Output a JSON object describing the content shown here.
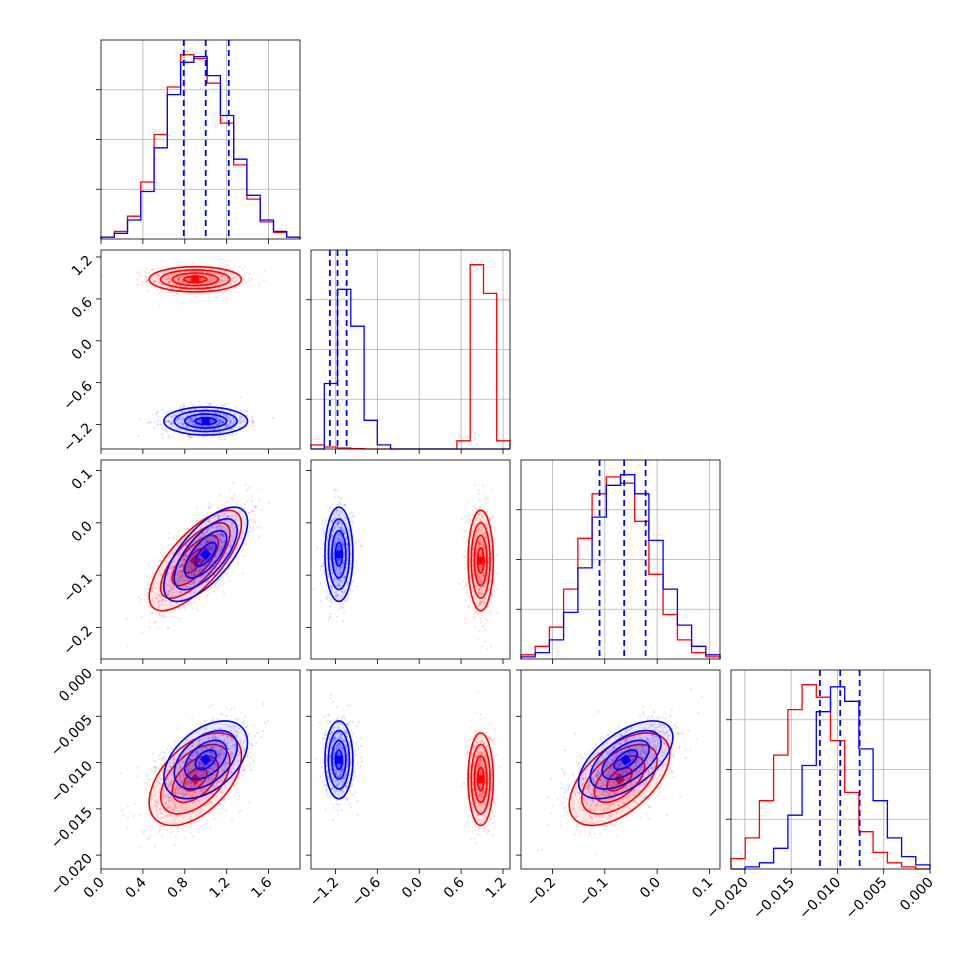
{
  "colors": {
    "red": "#ff0000",
    "blue": "#0000ff",
    "grid": "#b0b0b0"
  },
  "chart_data": {
    "type": "scatter",
    "title": "",
    "grid": true,
    "params": [
      {
        "range": [
          0.0,
          1.9
        ],
        "ticks": [
          "0.0",
          "0.4",
          "0.8",
          "1.2",
          "1.6"
        ],
        "tick_values": [
          0.0,
          0.4,
          0.8,
          1.2,
          1.6
        ]
      },
      {
        "range": [
          -1.55,
          1.3
        ],
        "ticks": [
          "−1.2",
          "−0.6",
          "0.0",
          "0.6",
          "1.2"
        ],
        "tick_values": [
          -1.2,
          -0.6,
          0.0,
          0.6,
          1.2
        ]
      },
      {
        "range": [
          -0.26,
          0.12
        ],
        "ticks": [
          "−0.2",
          "−0.1",
          "0.0",
          "0.1"
        ],
        "tick_values": [
          -0.2,
          -0.1,
          0.0,
          0.1
        ]
      },
      {
        "range": [
          -0.0215,
          0.0
        ],
        "ticks": [
          "−0.020",
          "−0.015",
          "−0.010",
          "−0.005",
          "0.000"
        ],
        "tick_values": [
          -0.02,
          -0.015,
          -0.01,
          -0.005,
          0.0
        ]
      }
    ],
    "series": [
      {
        "color": "#ff0000",
        "mean": [
          0.9,
          0.88,
          -0.072,
          -0.0118
        ],
        "std": [
          0.22,
          0.09,
          0.048,
          0.0025
        ],
        "corr": {
          "0-2": 0.72,
          "0-3": 0.5,
          "2-3": 0.55
        },
        "hist": [
          [
            0.1,
            0.4,
            1.2,
            3.0,
            5.5,
            8.0,
            9.7,
            9.5,
            8.2,
            6.1,
            3.9,
            2.1,
            0.9,
            0.35,
            0.1
          ],
          [
            0.2,
            0.1,
            0.05,
            0.02,
            0.0,
            0.0,
            0.0,
            0.0,
            0.0,
            0.0,
            0.0,
            0.4,
            9.0,
            7.6,
            0.4
          ],
          [
            0.2,
            0.6,
            1.5,
            3.3,
            5.7,
            7.8,
            8.6,
            8.3,
            6.5,
            4.0,
            2.1,
            0.9,
            0.3,
            0.1
          ],
          [
            0.5,
            1.5,
            3.3,
            5.5,
            7.7,
            8.9,
            8.3,
            6.2,
            3.7,
            1.8,
            0.8,
            0.3,
            0.1,
            0.0
          ]
        ]
      },
      {
        "color": "#0000ff",
        "mean": [
          1.0,
          -1.15,
          -0.06,
          -0.0097
        ],
        "std": [
          0.2,
          0.1,
          0.045,
          0.0021
        ],
        "corr": {
          "0-2": 0.68,
          "0-3": 0.45,
          "2-3": 0.58
        },
        "quantiles": [
          [
            0.79,
            1.0,
            1.22
          ],
          [
            -1.28,
            -1.17,
            -1.04
          ],
          [
            -0.11,
            -0.063,
            -0.022
          ],
          [
            -0.0119,
            -0.0097,
            -0.0076
          ]
        ],
        "hist": [
          [
            0.1,
            0.3,
            1.0,
            2.5,
            4.8,
            7.6,
            9.3,
            9.6,
            8.6,
            6.5,
            4.2,
            2.3,
            1.0,
            0.4,
            0.1
          ],
          [
            0.0,
            3.2,
            7.8,
            6.0,
            1.4,
            0.2,
            0.0,
            0.0,
            0.0,
            0.0,
            0.0,
            0.0,
            0.0,
            0.0,
            0.0
          ],
          [
            0.1,
            0.3,
            0.9,
            2.2,
            4.3,
            6.7,
            8.2,
            8.7,
            7.8,
            5.6,
            3.3,
            1.6,
            0.6,
            0.2
          ],
          [
            0.0,
            0.1,
            0.3,
            1.0,
            2.6,
            5.0,
            7.6,
            8.8,
            8.1,
            5.8,
            3.3,
            1.5,
            0.6,
            0.2
          ]
        ]
      }
    ]
  }
}
